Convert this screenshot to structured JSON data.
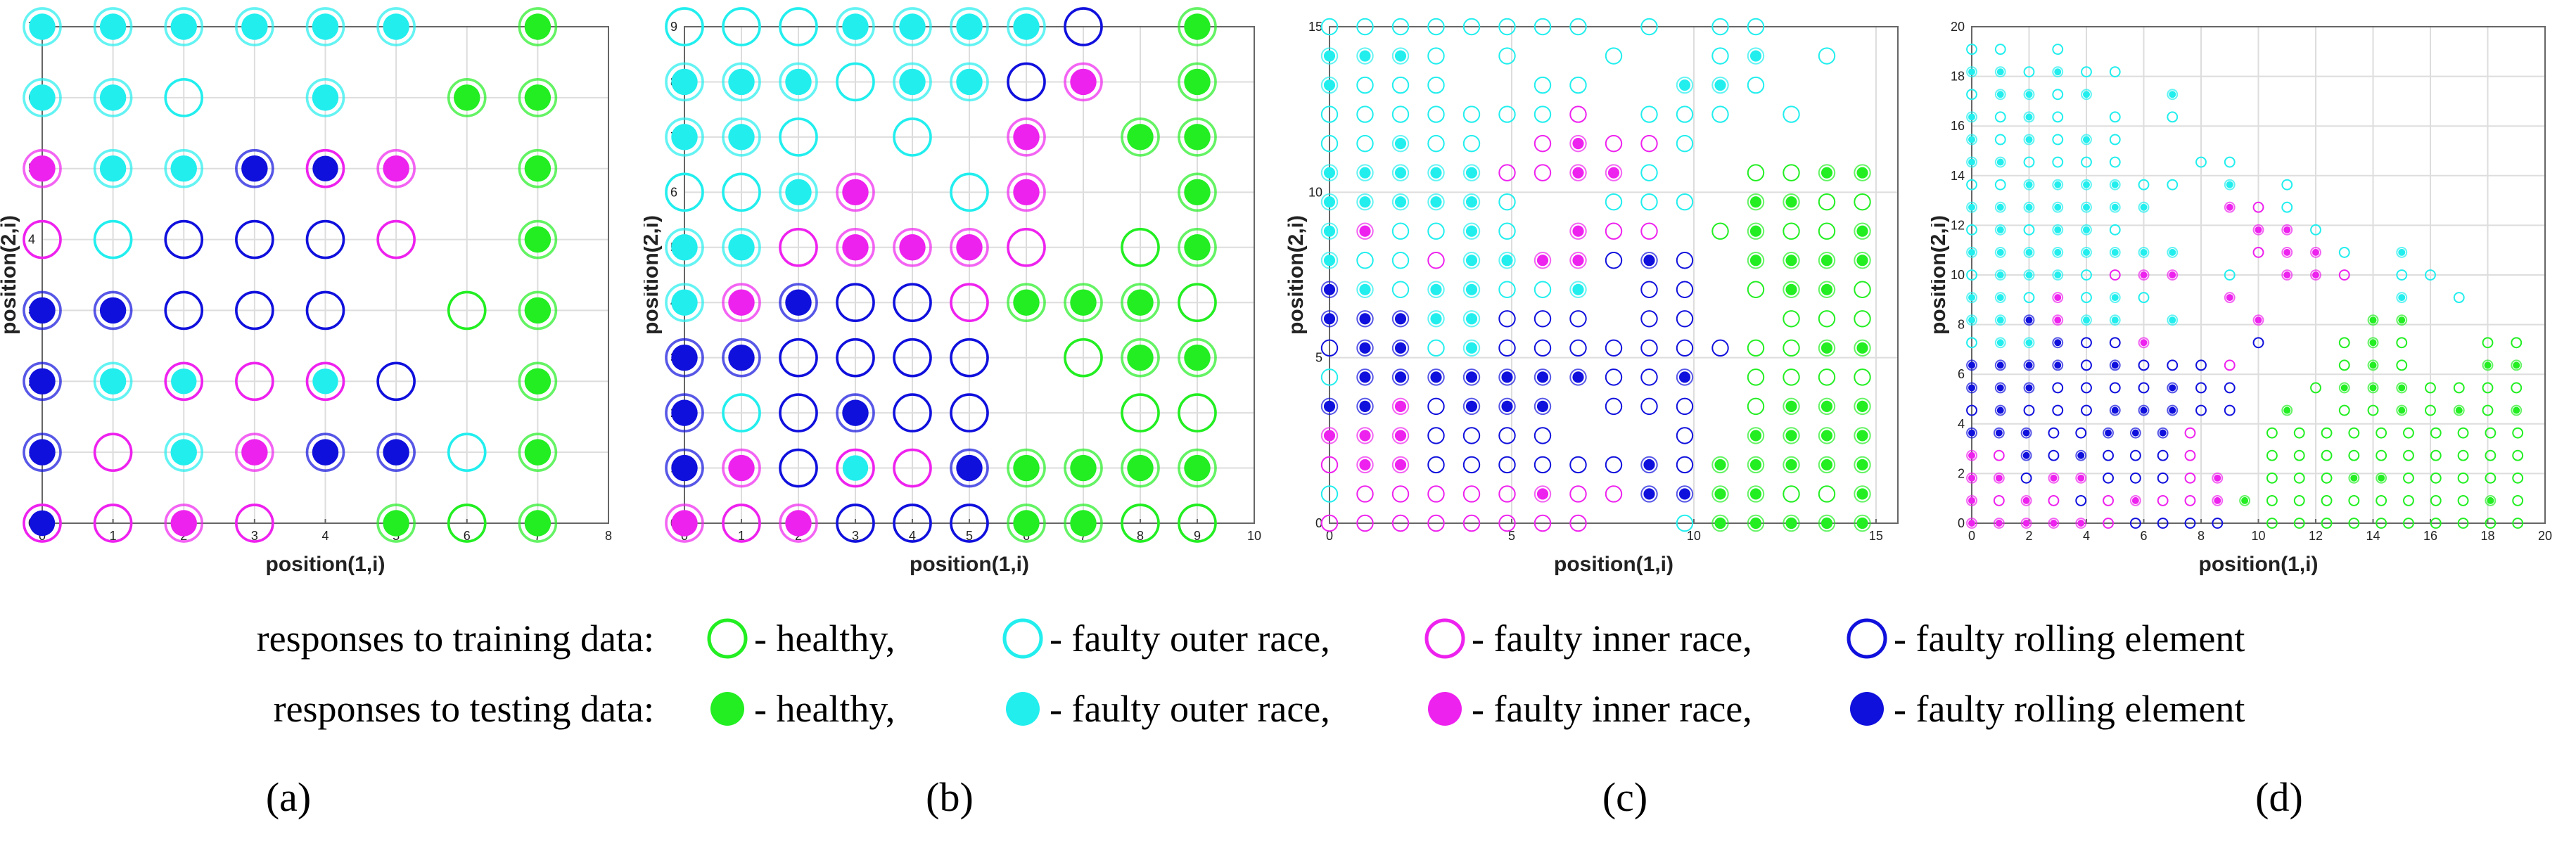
{
  "colors": {
    "healthy": "#22ee22",
    "faulty_outer_race": "#22eeee",
    "faulty_inner_race": "#ee22ee",
    "faulty_rolling_element": "#1010dd",
    "grid": "#dddddd",
    "axis": "#666666"
  },
  "legend": {
    "training_label": "responses to training data:",
    "testing_label": "responses to testing data:",
    "items": [
      {
        "key": "healthy",
        "text": "- healthy,"
      },
      {
        "key": "faulty_outer_race",
        "text": "- faulty outer race,"
      },
      {
        "key": "faulty_inner_race",
        "text": "- faulty inner race,"
      },
      {
        "key": "faulty_rolling_element",
        "text": "- faulty rolling element"
      }
    ]
  },
  "chart_data": [
    {
      "type": "scatter",
      "panel_label": "(a)",
      "xlabel": "position(1,i)",
      "ylabel": "position(2,i)",
      "xlim": [
        0,
        8
      ],
      "ylim": [
        0,
        7
      ],
      "xticks": [
        0,
        1,
        2,
        3,
        4,
        5,
        6,
        7,
        8
      ],
      "yticks": [
        0,
        1,
        2,
        3,
        4,
        5,
        6,
        7
      ],
      "grid": true,
      "marker_size": 1.0,
      "grid_rows": [
        "OOOOOO.H",
        "OOo.O.HH",
        "IOOR|I.H",
        "iovrri.H",
        "RRrrr.hH",
        "RO!i!r.H",
        "RiOIRRoH",
        "|iIi.HhH"
      ]
    },
    {
      "type": "scatter",
      "panel_label": "(b)",
      "xlabel": "position(1,i)",
      "ylabel": "position(2,i)",
      "xlim": [
        0,
        10
      ],
      "ylim": [
        0,
        9
      ],
      "xticks": [
        0,
        1,
        2,
        3,
        4,
        5,
        6,
        7,
        8,
        9,
        10
      ],
      "yticks": [
        0,
        1,
        2,
        3,
        4,
        5,
        6,
        7,
        8,
        9
      ],
      "grid": true,
      "marker_size": 1.0,
      "grid_rows": [
        "oooOOOOr.H",
        "OOOoOOrI.H",
        "OOo.o.I.HH",
        "ooOI.oI..H",
        "OOiIIIi.hH",
        "OIRrriHHHh",
        "RRrrrr.hHH",
        "RorRrr..hh",
        "RIr!iRHHHH",
        "IiIrrrHHhh"
      ]
    },
    {
      "type": "scatter",
      "panel_label": "(c)",
      "xlabel": "position(1,i)",
      "ylabel": "position(2,i)",
      "xlim": [
        0,
        15.6
      ],
      "ylim": [
        0,
        15
      ],
      "xticks": [
        0,
        5,
        10,
        15
      ],
      "yticks": [
        0,
        5,
        10,
        15
      ],
      "grid": true,
      "marker_size": 0.75,
      "grid_rows": [
        "oooooooo.o.oo...",
        "OOOo.o..o..oO.o.",
        "Oooo..oo..OOo...",
        "oooooooi.ooo.o..",
        "ooOoo.iIiio.....",
        "OOOOOiiIIo..hhHH",
        "OOOOOo..ooo.HHhh",
        "OIooOo.Iii.hHhhH",
        "OooiOOIIrRr.HHHH",
        "ROoOOooO.rr.hHHh",
        "RRROOrrr.rr..hhh",
        "rRRoOrrrrrrrhhHH",
        "oRRRRRRRrrR.hhhh",
        "RRIrRRR.rrr.hHHH",
        "IIIrrrr...r.HHHH",
        "iIIrrrrrrRrHHHHH",
        "oiiiiiIiiRRHHhhH",
        "iiiiiiii..oHHHHH"
      ]
    },
    {
      "type": "scatter",
      "panel_label": "(d)",
      "xlabel": "position(1,i)",
      "ylabel": "position(2,i)",
      "xlim": [
        0,
        20
      ],
      "ylim": [
        0,
        20
      ],
      "xticks": [
        0,
        2,
        4,
        6,
        8,
        10,
        12,
        14,
        16,
        18,
        20
      ],
      "yticks": [
        0,
        2,
        4,
        6,
        8,
        10,
        12,
        14,
        16,
        18,
        20
      ],
      "grid": true,
      "marker_size": 0.6,
      "grid_rows": [
        "....................",
        "oo.o................",
        "OOoOoo..............",
        "oOOoO..O............",
        "OoOo.o.o............",
        "OoOoOo..............",
        "OOoooo..oo..........",
        "ooOOOOoo.O.o........",
        "OOOOOOO..Iio........",
        "oOoOOo....IIo.......",
        "OOOOOOOO..iIIo.O....",
        "oOOOoiII.o.IIi.oo...",
        "OOoIoOo..I.....O.o..",
        "OORIOO.O..I...HH....",
        "oOORrrI...r..hHh..hh",
        "RRRRrRrrri...hHh..HH",
        "RRRrrrrRrr..hHHHhhhh",
        "rRrrrRRRrr.H.hhHhHhH",
        "RRRrrRRRi..hhhhhhhhhh",
        "IiRrRrrri..hhhhhhhhhh",
        "IIrIIrrriI.hhhHHhhhhh",
        "IiIiriIiiIHhhhhhhhhHh",
        "IIIIIirrrr.hhhhhhhhhh"
      ]
    }
  ]
}
